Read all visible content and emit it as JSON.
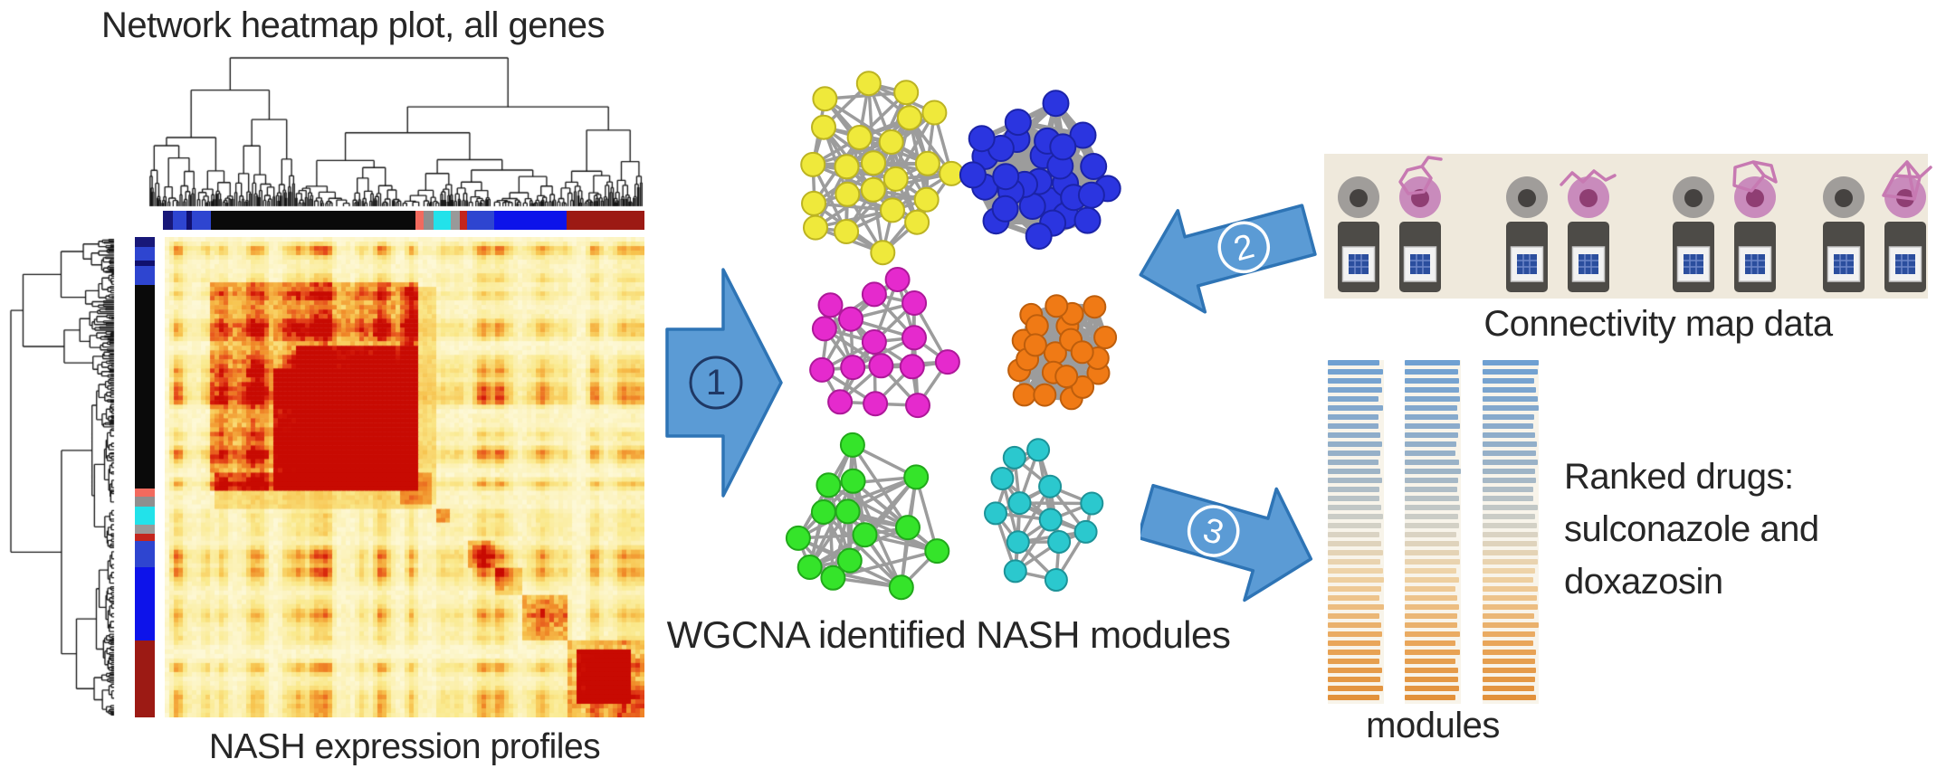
{
  "title": "Network heatmap plot, all genes",
  "heatmap": {
    "caption": "NASH expression profiles",
    "palette": [
      "#FDF8D6",
      "#FAE98C",
      "#F7C34E",
      "#F08A28",
      "#E5491A",
      "#D21708",
      "#C80A02"
    ],
    "module_colorbar": [
      {
        "color": "#181878",
        "frac": 0.021
      },
      {
        "color": "#2E45D0",
        "frac": 0.028
      },
      {
        "color": "#10106E",
        "frac": 0.011
      },
      {
        "color": "#2E45D0",
        "frac": 0.039
      },
      {
        "color": "#0A0A0A",
        "frac": 0.425
      },
      {
        "color": "#F26A5E",
        "frac": 0.017
      },
      {
        "color": "#8F8F8F",
        "frac": 0.021
      },
      {
        "color": "#22E2EA",
        "frac": 0.036
      },
      {
        "color": "#999999",
        "frac": 0.019
      },
      {
        "color": "#C4251D",
        "frac": 0.015
      },
      {
        "color": "#2E45D0",
        "frac": 0.056
      },
      {
        "color": "#0D13EA",
        "frac": 0.151
      },
      {
        "color": "#9C1A14",
        "frac": 0.161
      }
    ]
  },
  "modules": {
    "caption": "WGCNA identified NASH modules",
    "clusters": [
      {
        "name": "yellow",
        "color": "#EFE93B",
        "border": "#BCB322"
      },
      {
        "name": "blue",
        "color": "#2B35E0",
        "border": "#1B23A8"
      },
      {
        "name": "magenta",
        "color": "#E52ACD",
        "border": "#AD1899"
      },
      {
        "name": "orange",
        "color": "#F07A15",
        "border": "#BE5E0C"
      },
      {
        "name": "green",
        "color": "#35E42A",
        "border": "#21A81A"
      },
      {
        "name": "cyan",
        "color": "#2BC8CE",
        "border": "#1D9398"
      }
    ]
  },
  "steps": [
    {
      "label": "1"
    },
    {
      "label": "2"
    },
    {
      "label": "3"
    }
  ],
  "arrow_color": {
    "fill": "#5B9BD5",
    "stroke": "#2E74B5",
    "number_dark": "#1F3864",
    "number_light": "#FFFFFF"
  },
  "cmap": {
    "caption": "Connectivity map data",
    "panel_color": "#EFE9DC",
    "structure_color": "#C779B2",
    "groups": 4,
    "structures": [
      "hexagon-ring",
      "zigzag-chain",
      "fused-rings",
      "bicyclic-cage"
    ],
    "cell_colors": {
      "gray": "#A09D9A",
      "gray_nucleus": "#454240",
      "pink": "#C98BBC",
      "pink_nucleus": "#8F3E73"
    },
    "chip_colors": {
      "body": "#4D4B47",
      "screen": "#F2F2F2",
      "chip": "#2B4E9E",
      "chip_grid": "#6C86C8"
    }
  },
  "ranked": {
    "caption": "modules",
    "lines": [
      "Ranked drugs:",
      "sulconazole and",
      "doxazosin"
    ],
    "columns": 3,
    "stripes_per_column": 38,
    "gradient_stops": [
      {
        "t": 0.0,
        "color": "#6FA0D2"
      },
      {
        "t": 0.33,
        "color": "#9FB4C6"
      },
      {
        "t": 0.5,
        "color": "#D8D3C6"
      },
      {
        "t": 0.63,
        "color": "#EFD3A6"
      },
      {
        "t": 0.83,
        "color": "#E9A75B"
      },
      {
        "t": 1.0,
        "color": "#E2913B"
      }
    ]
  }
}
